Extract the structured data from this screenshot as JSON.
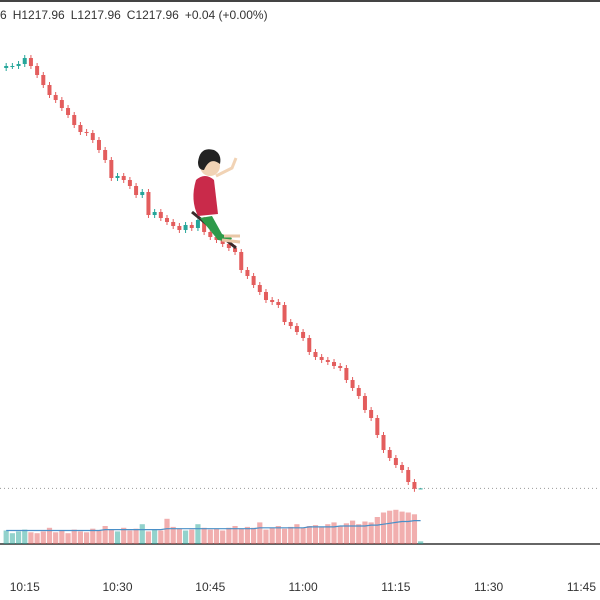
{
  "chart_data": {
    "type": "candlestick",
    "ohlc_legend": [
      "6",
      "H1217.96",
      "L1217.96",
      "C1217.96",
      "+0.04 (+0.00%)"
    ],
    "x": [
      "10:12",
      "10:13",
      "10:14",
      "10:15",
      "10:16",
      "10:17",
      "10:18",
      "10:19",
      "10:20",
      "10:21",
      "10:22",
      "10:23",
      "10:24",
      "10:25",
      "10:26",
      "10:27",
      "10:28",
      "10:29",
      "10:30",
      "10:31",
      "10:32",
      "10:33",
      "10:34",
      "10:35",
      "10:36",
      "10:37",
      "10:38",
      "10:39",
      "10:40",
      "10:41",
      "10:42",
      "10:43",
      "10:44",
      "10:45",
      "10:46",
      "10:47",
      "10:48",
      "10:49",
      "10:50",
      "10:51",
      "10:52",
      "10:53",
      "10:54",
      "10:55",
      "10:56",
      "10:57",
      "10:58",
      "10:59",
      "11:00",
      "11:01",
      "11:02",
      "11:03",
      "11:04",
      "11:05",
      "11:06",
      "11:07",
      "11:08",
      "11:09",
      "11:10",
      "11:11",
      "11:12",
      "11:13",
      "11:14",
      "11:15",
      "11:16",
      "11:17",
      "11:18",
      "11:19"
    ],
    "open": [
      1260.0,
      1260.2,
      1260.2,
      1260.4,
      1261.0,
      1260.2,
      1259.3,
      1258.3,
      1257.3,
      1256.8,
      1256.0,
      1255.3,
      1254.3,
      1253.6,
      1253.5,
      1252.8,
      1251.8,
      1250.8,
      1249.0,
      1249.2,
      1248.8,
      1248.2,
      1247.3,
      1247.6,
      1245.3,
      1245.6,
      1245.0,
      1244.6,
      1244.2,
      1243.8,
      1244.3,
      1244.0,
      1244.8,
      1243.6,
      1243.1,
      1242.8,
      1242.4,
      1242.0,
      1241.6,
      1239.8,
      1239.2,
      1238.3,
      1237.6,
      1236.8,
      1236.6,
      1236.3,
      1234.6,
      1234.2,
      1233.6,
      1233.0,
      1231.6,
      1231.1,
      1230.8,
      1230.6,
      1230.2,
      1230.0,
      1228.8,
      1228.0,
      1227.2,
      1225.8,
      1225.0,
      1223.3,
      1221.8,
      1221.0,
      1220.3,
      1219.8,
      1218.6,
      1217.96
    ],
    "high": [
      1260.5,
      1260.5,
      1260.7,
      1261.3,
      1261.3,
      1260.5,
      1259.6,
      1258.6,
      1257.6,
      1257.1,
      1256.3,
      1255.6,
      1254.6,
      1253.9,
      1253.8,
      1253.1,
      1252.1,
      1251.1,
      1249.5,
      1249.5,
      1249.1,
      1248.5,
      1247.9,
      1247.9,
      1245.9,
      1245.9,
      1245.3,
      1244.9,
      1244.5,
      1244.6,
      1244.6,
      1245.1,
      1245.1,
      1243.9,
      1243.4,
      1243.1,
      1242.7,
      1242.3,
      1241.9,
      1240.1,
      1239.5,
      1238.6,
      1237.9,
      1237.1,
      1236.9,
      1236.6,
      1234.9,
      1234.5,
      1233.9,
      1233.3,
      1231.9,
      1231.4,
      1231.1,
      1230.9,
      1230.5,
      1230.3,
      1229.1,
      1228.3,
      1227.5,
      1226.1,
      1225.3,
      1223.6,
      1222.1,
      1221.3,
      1220.6,
      1220.1,
      1218.9,
      1217.96
    ],
    "low": [
      1259.7,
      1259.9,
      1259.9,
      1260.1,
      1259.9,
      1259.0,
      1258.0,
      1257.0,
      1256.5,
      1255.7,
      1255.0,
      1254.0,
      1253.3,
      1253.2,
      1252.5,
      1251.5,
      1250.5,
      1248.7,
      1248.7,
      1248.5,
      1247.9,
      1247.0,
      1247.0,
      1245.0,
      1245.0,
      1244.7,
      1244.3,
      1243.9,
      1243.5,
      1243.5,
      1243.7,
      1243.7,
      1243.3,
      1242.8,
      1242.5,
      1242.1,
      1241.7,
      1241.3,
      1239.5,
      1238.9,
      1238.0,
      1237.3,
      1236.5,
      1236.3,
      1236.0,
      1234.3,
      1233.9,
      1233.3,
      1232.7,
      1231.3,
      1230.8,
      1230.5,
      1230.3,
      1229.9,
      1229.7,
      1228.5,
      1227.7,
      1226.9,
      1225.5,
      1224.7,
      1223.0,
      1221.5,
      1220.7,
      1220.0,
      1219.5,
      1218.3,
      1217.62,
      1217.96
    ],
    "close": [
      1260.2,
      1260.2,
      1260.4,
      1261.0,
      1260.2,
      1259.3,
      1258.3,
      1257.3,
      1256.8,
      1256.0,
      1255.3,
      1254.3,
      1253.6,
      1253.5,
      1252.8,
      1251.8,
      1250.8,
      1249.0,
      1249.2,
      1248.8,
      1248.2,
      1247.3,
      1247.6,
      1245.3,
      1245.6,
      1245.0,
      1244.6,
      1244.2,
      1243.8,
      1244.3,
      1244.0,
      1244.8,
      1243.6,
      1243.1,
      1242.8,
      1242.4,
      1242.0,
      1241.6,
      1239.8,
      1239.2,
      1238.3,
      1237.6,
      1236.8,
      1236.6,
      1236.3,
      1234.6,
      1234.2,
      1233.6,
      1233.0,
      1231.6,
      1231.1,
      1230.8,
      1230.6,
      1230.2,
      1230.0,
      1228.8,
      1228.0,
      1227.2,
      1225.8,
      1225.0,
      1223.3,
      1221.8,
      1221.0,
      1220.3,
      1219.8,
      1218.6,
      1217.92,
      1217.96
    ],
    "volume": [
      15,
      12,
      14,
      16,
      13,
      12,
      14,
      18,
      13,
      15,
      12,
      16,
      14,
      13,
      17,
      15,
      20,
      16,
      14,
      18,
      15,
      17,
      22,
      14,
      16,
      15,
      28,
      19,
      17,
      15,
      16,
      22,
      18,
      16,
      17,
      15,
      18,
      20,
      17,
      19,
      18,
      24,
      16,
      18,
      20,
      17,
      19,
      22,
      18,
      20,
      21,
      19,
      22,
      24,
      20,
      23,
      26,
      22,
      25,
      24,
      30,
      35,
      37,
      38,
      36,
      35,
      33,
      3
    ],
    "volume_ma": [
      15,
      15,
      15,
      15,
      15,
      15,
      15,
      15,
      15,
      15,
      15,
      15,
      15,
      15,
      15,
      15,
      16,
      16,
      16,
      16,
      16,
      16,
      16,
      16,
      16,
      16,
      17,
      17,
      17,
      17,
      17,
      17,
      17,
      17,
      17,
      17,
      17,
      17,
      17,
      17,
      17,
      18,
      18,
      18,
      18,
      18,
      18,
      18,
      18,
      19,
      19,
      19,
      19,
      19,
      20,
      20,
      20,
      20,
      20,
      21,
      21,
      22,
      23,
      24,
      25,
      25,
      26,
      26
    ],
    "xlim": [
      "10:11",
      "11:48"
    ],
    "xticks": [
      "10:15",
      "10:30",
      "10:45",
      "11:00",
      "11:15",
      "11:30",
      "11:45"
    ],
    "ylim": [
      1216,
      1265
    ],
    "volume_lim": [
      0,
      100
    ],
    "up_color": "#26a69a",
    "down_color": "#e35d5d",
    "volume_ma_color": "#4a90c8",
    "legend_color": "#089981"
  }
}
